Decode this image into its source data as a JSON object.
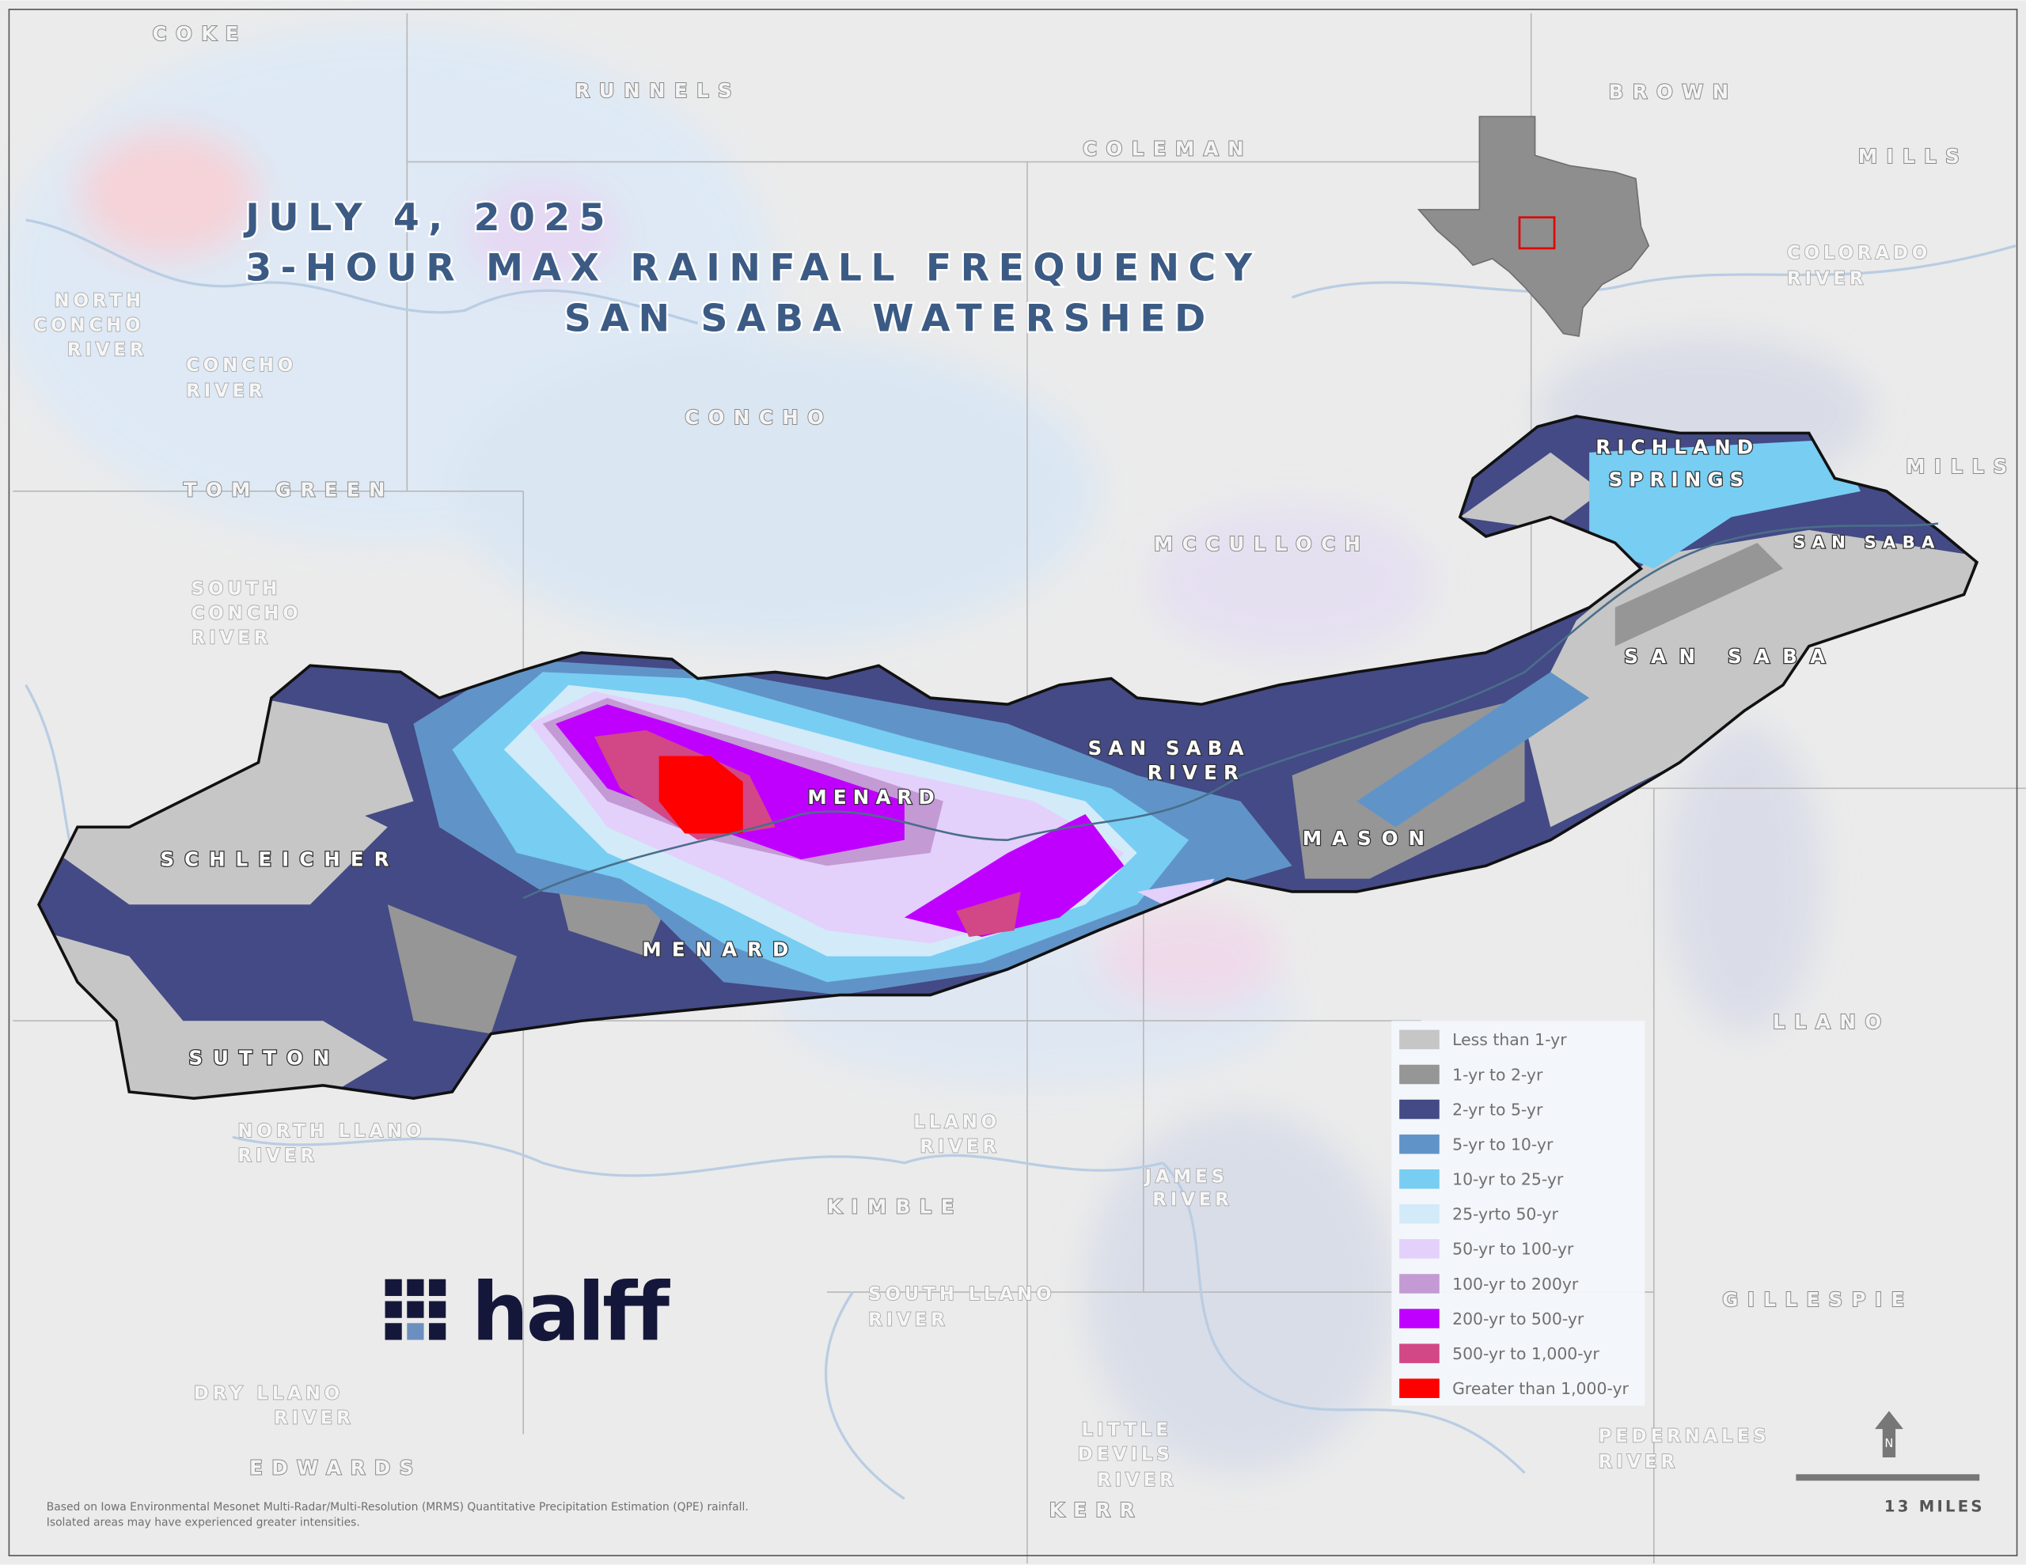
{
  "title": {
    "line1": "JULY 4, 2025",
    "line2": "3-HOUR MAX RAINFALL FREQUENCY",
    "line3": "SAN SABA WATERSHED"
  },
  "counties": {
    "coke": "COKE",
    "runnels": "RUNNELS",
    "coleman": "COLEMAN",
    "brown": "BROWN",
    "mills": "MILLS",
    "mills2": "MILLS",
    "concho": "CONCHO",
    "tom_green": "TOM GREEN",
    "mcculloch": "MCCULLOCH",
    "san_saba": "SAN SABA",
    "schleicher": "SCHLEICHER",
    "menard": "MENARD",
    "mason": "MASON",
    "sutton": "SUTTON",
    "llano": "LLANO",
    "kimble": "KIMBLE",
    "gillespie": "GILLESPIE",
    "edwards": "EDWARDS",
    "kerr": "KERR"
  },
  "places": {
    "richland_springs": [
      "RICHLAND",
      "SPRINGS"
    ],
    "menard_town": "MENARD"
  },
  "rivers": {
    "colorado": [
      "COLORADO",
      "RIVER"
    ],
    "north_concho": [
      "NORTH",
      "CONCHO",
      "RIVER"
    ],
    "concho": [
      "CONCHO",
      "RIVER"
    ],
    "south_concho": [
      "SOUTH",
      "CONCHO",
      "RIVER"
    ],
    "san_saba_east": "SAN SABA",
    "san_saba": [
      "SAN SABA",
      "RIVER"
    ],
    "north_llano": [
      "NORTH LLANO",
      "RIVER"
    ],
    "llano": [
      "LLANO",
      "RIVER"
    ],
    "james": [
      "JAMES",
      "RIVER"
    ],
    "south_llano": [
      "SOUTH LLANO",
      "RIVER"
    ],
    "dry_llano": [
      "DRY LLANO",
      "RIVER"
    ],
    "little_devils": [
      "LITTLE",
      "DEVILS",
      "RIVER"
    ],
    "pedernales": [
      "PEDERNALES",
      "RIVER"
    ]
  },
  "legend": [
    {
      "label": "Less than 1-yr",
      "color": "#c6c6c6"
    },
    {
      "label": "1-yr to 2-yr",
      "color": "#969696"
    },
    {
      "label": "2-yr to 5-yr",
      "color": "#434a85"
    },
    {
      "label": "5-yr to 10-yr",
      "color": "#6094c8"
    },
    {
      "label": "10-yr to 25-yr",
      "color": "#78cdf2"
    },
    {
      "label": "25-yrto 50-yr",
      "color": "#d3eaf8"
    },
    {
      "label": "50-yr to 100-yr",
      "color": "#e3d0fb"
    },
    {
      "label": "100-yr to 200yr",
      "color": "#c39ad4"
    },
    {
      "label": "200-yr to 500-yr",
      "color": "#c000ff"
    },
    {
      "label": "500-yr to 1,000-yr",
      "color": "#d24785"
    },
    {
      "label": "Greater than 1,000-yr",
      "color": "#ff0000"
    }
  ],
  "logo": {
    "text": "halff"
  },
  "scale_bar": {
    "label": "13 MILES"
  },
  "north_arrow": {
    "letter": "N"
  },
  "footnote": {
    "line1": "Based on Iowa Environmental Mesonet Multi-Radar/Multi-Resolution (MRMS) Quantitative Precipitation Estimation (QPE) rainfall.",
    "line2": "Isolated areas may have experienced greater intensities."
  },
  "colors": {
    "title": "#3b5b85",
    "background": "#ebebeb",
    "inset_highlight": "#e00000"
  }
}
